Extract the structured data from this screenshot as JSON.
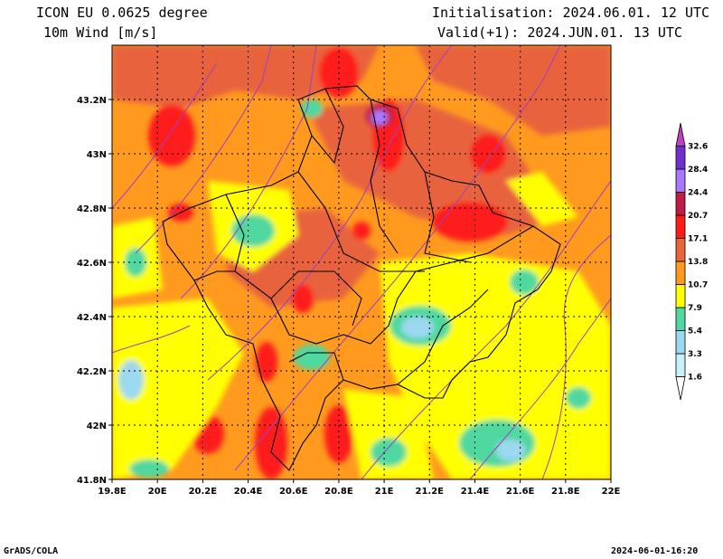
{
  "header": {
    "model": "ICON EU 0.0625 degree",
    "variable": "10m Wind [m/s]",
    "init": "Initialisation: 2024.06.01. 12 UTC",
    "valid": "Valid(+1): 2024.JUN.01. 13 UTC"
  },
  "footer": {
    "credit": "GrADS/COLA",
    "timestamp": "2024-06-01-16:20"
  },
  "map": {
    "lon_range": [
      19.8,
      22.0
    ],
    "lat_range": [
      41.8,
      43.4
    ],
    "x_ticks": [
      "19.8E",
      "20E",
      "20.2E",
      "20.4E",
      "20.6E",
      "20.8E",
      "21E",
      "21.2E",
      "21.4E",
      "21.6E",
      "21.8E",
      "22E"
    ],
    "y_ticks": [
      "41.8N",
      "42N",
      "42.2N",
      "42.4N",
      "42.6N",
      "42.8N",
      "43N",
      "43.2N"
    ]
  },
  "colorbar": {
    "unit": "m/s",
    "levels": [
      "1.6",
      "3.3",
      "5.4",
      "7.9",
      "10.7",
      "13.8",
      "17.1",
      "20.7",
      "24.4",
      "28.4",
      "32.6"
    ],
    "colors": [
      "#ffffff",
      "#c8f0f8",
      "#9cd8f0",
      "#50d8a0",
      "#ffff00",
      "#ff9a1e",
      "#e8643c",
      "#ff1a1a",
      "#c01a46",
      "#a878ff",
      "#7030d0",
      "#c040c0"
    ]
  }
}
